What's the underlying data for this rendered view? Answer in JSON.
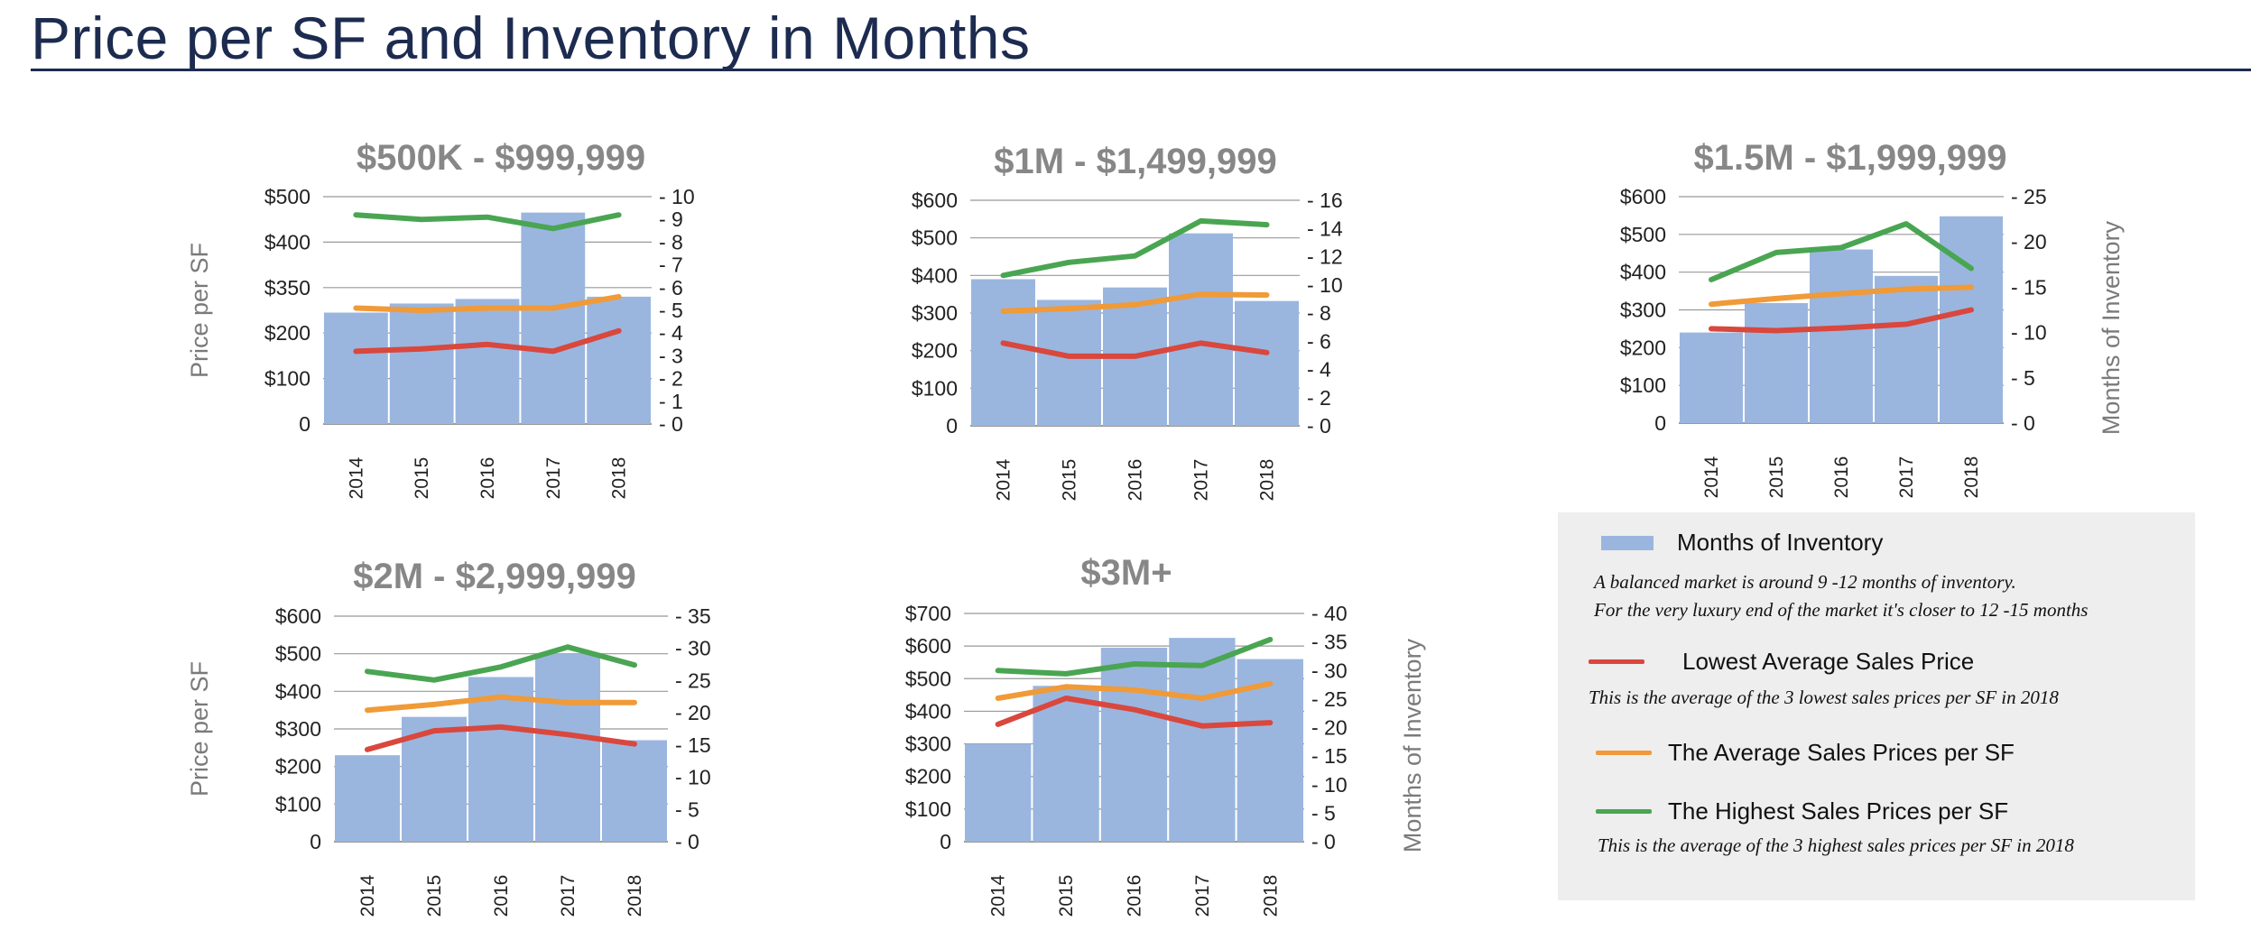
{
  "page": {
    "title": "Price per SF and Inventory in Months"
  },
  "colors": {
    "bars": "#9ab6df",
    "lowest": "#d9473d",
    "average": "#f09a38",
    "highest": "#4aa552",
    "title": "#1c2b4f",
    "grid": "#999999"
  },
  "side_labels": {
    "price_per_sf": "Price per SF",
    "months_of_inventory": "Months of Inventory"
  },
  "legend": {
    "months_label": "Months of Inventory",
    "months_note_1": "A balanced market is around 9 -12 months of inventory.",
    "months_note_2": "For the very luxury end of the market it's closer to 12 -15 months",
    "lowest_label": "Lowest Average Sales Price",
    "lowest_note": "This is the average of the 3 lowest  sales prices per SF in 2018",
    "average_label": "The Average Sales Prices per SF",
    "highest_label": "The Highest Sales Prices per SF",
    "highest_note": "This is the average of the 3 highest  sales prices per SF in 2018"
  },
  "chart_data": [
    {
      "type": "bar",
      "title": "$500K - $999,999",
      "categories": [
        "2014",
        "2015",
        "2016",
        "2017",
        "2018"
      ],
      "left_ticks": [
        "0",
        "$100",
        "$200",
        "$350",
        "$400",
        "$500"
      ],
      "right_ticks": [
        "0",
        "1",
        "2",
        "3",
        "4",
        "5",
        "6",
        "7",
        "8",
        "9",
        "10"
      ],
      "ylim_right": [
        0,
        10
      ],
      "ylabel": "Price per SF",
      "y2label": "",
      "bars": {
        "name": "Months of Inventory",
        "axis": "right",
        "values": [
          4.9,
          5.3,
          5.5,
          9.3,
          5.6
        ]
      },
      "lines": [
        {
          "name": "Lowest Average Sales Price",
          "color": "lowest",
          "values_right": [
            3.2,
            3.3,
            3.5,
            3.2,
            4.1
          ]
        },
        {
          "name": "The Average Sales Prices per SF",
          "color": "average",
          "values_right": [
            5.1,
            5.0,
            5.1,
            5.1,
            5.6
          ]
        },
        {
          "name": "The Highest Sales Prices per SF",
          "color": "highest",
          "values_right": [
            9.2,
            9.0,
            9.1,
            8.6,
            9.2
          ]
        }
      ]
    },
    {
      "type": "bar",
      "title": "$1M - $1,499,999",
      "categories": [
        "2014",
        "2015",
        "2016",
        "2017",
        "2018"
      ],
      "left_ticks": [
        "0",
        "$100",
        "$200",
        "$300",
        "$400",
        "$500",
        "$600"
      ],
      "right_ticks": [
        "0",
        "2",
        "4",
        "6",
        "8",
        "10",
        "12",
        "14",
        "16"
      ],
      "ylim_left": [
        0,
        600
      ],
      "ylim_right": [
        0,
        16
      ],
      "ylabel": "",
      "y2label": "",
      "bars": {
        "name": "Months of Inventory",
        "axis": "left",
        "values": [
          390,
          335,
          368,
          512,
          332
        ]
      },
      "lines": [
        {
          "name": "Lowest Average Sales Price",
          "color": "lowest",
          "values": [
            220,
            185,
            185,
            220,
            195
          ]
        },
        {
          "name": "The Average Sales Prices per SF",
          "color": "average",
          "values": [
            305,
            312,
            322,
            350,
            348
          ]
        },
        {
          "name": "The Highest Sales Prices per SF",
          "color": "highest",
          "values": [
            400,
            435,
            452,
            545,
            535
          ]
        }
      ]
    },
    {
      "type": "bar",
      "title": "$1.5M - $1,999,999",
      "categories": [
        "2014",
        "2015",
        "2016",
        "2017",
        "2018"
      ],
      "left_ticks": [
        "0",
        "$100",
        "$200",
        "$300",
        "$400",
        "$500",
        "$600"
      ],
      "right_ticks": [
        "0",
        "5",
        "10",
        "15",
        "20",
        "25"
      ],
      "ylim_left": [
        0,
        600
      ],
      "ylim_right": [
        0,
        25
      ],
      "ylabel": "",
      "y2label": "Months of Inventory",
      "bars": {
        "name": "Months of Inventory",
        "axis": "left",
        "values": [
          240,
          318,
          460,
          390,
          548
        ]
      },
      "lines": [
        {
          "name": "Lowest Average Sales Price",
          "color": "lowest",
          "values": [
            250,
            245,
            252,
            262,
            300
          ]
        },
        {
          "name": "The Average Sales Prices per SF",
          "color": "average",
          "values": [
            315,
            330,
            343,
            355,
            360
          ]
        },
        {
          "name": "The Highest Sales Prices per SF",
          "color": "highest",
          "values": [
            380,
            452,
            465,
            528,
            410
          ]
        }
      ]
    },
    {
      "type": "bar",
      "title": "$2M - $2,999,999",
      "categories": [
        "2014",
        "2015",
        "2016",
        "2017",
        "2018"
      ],
      "left_ticks": [
        "0",
        "$100",
        "$200",
        "$300",
        "$400",
        "$500",
        "$600"
      ],
      "right_ticks": [
        "0",
        "5",
        "10",
        "15",
        "20",
        "25",
        "30",
        "35"
      ],
      "ylim_left": [
        0,
        600
      ],
      "ylim_right": [
        0,
        35
      ],
      "ylabel": "Price per SF",
      "y2label": "",
      "bars": {
        "name": "Months of Inventory",
        "axis": "left",
        "values": [
          230,
          332,
          438,
          500,
          270
        ]
      },
      "lines": [
        {
          "name": "Lowest Average Sales Price",
          "color": "lowest",
          "values": [
            245,
            295,
            305,
            285,
            260
          ]
        },
        {
          "name": "The Average Sales Prices per SF",
          "color": "average",
          "values": [
            350,
            365,
            385,
            370,
            370
          ]
        },
        {
          "name": "The Highest Sales Prices per SF",
          "color": "highest",
          "values": [
            453,
            430,
            465,
            518,
            470
          ]
        }
      ]
    },
    {
      "type": "bar",
      "title": "$3M+",
      "categories": [
        "2014",
        "2015",
        "2016",
        "2017",
        "2018"
      ],
      "left_ticks": [
        "0",
        "$100",
        "$200",
        "$300",
        "$400",
        "$500",
        "$600",
        "$700"
      ],
      "right_ticks": [
        "0",
        "5",
        "10",
        "15",
        "20",
        "25",
        "30",
        "35",
        "40"
      ],
      "ylim_left": [
        0,
        700
      ],
      "ylim_right": [
        0,
        40
      ],
      "ylabel": "",
      "y2label": "Months of Inventory",
      "bars": {
        "name": "Months of Inventory",
        "axis": "left",
        "values": [
          300,
          478,
          595,
          625,
          560
        ]
      },
      "lines": [
        {
          "name": "Lowest Average Sales Price",
          "color": "lowest",
          "values": [
            360,
            440,
            405,
            355,
            365
          ]
        },
        {
          "name": "The Average Sales Prices per SF",
          "color": "average",
          "values": [
            440,
            475,
            465,
            440,
            485
          ]
        },
        {
          "name": "The Highest Sales Prices per SF",
          "color": "highest",
          "values": [
            525,
            515,
            545,
            540,
            620
          ]
        }
      ]
    }
  ]
}
